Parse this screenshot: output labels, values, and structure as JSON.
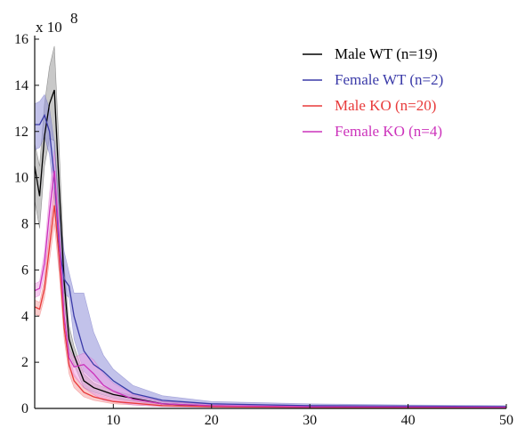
{
  "chart_data": {
    "type": "line",
    "title": "",
    "xlabel": "",
    "ylabel": "",
    "xlim": [
      2,
      50
    ],
    "ylim": [
      0,
      16
    ],
    "x_ticks": [
      "10",
      "20",
      "30",
      "40",
      "50"
    ],
    "x_tick_values": [
      10,
      20,
      30,
      40,
      50
    ],
    "y_ticks": [
      "0",
      "2",
      "4",
      "6",
      "8",
      "10",
      "12",
      "14",
      "16"
    ],
    "y_tick_values": [
      0,
      2,
      4,
      6,
      8,
      10,
      12,
      14,
      16
    ],
    "y_multiplier_base": "x 10",
    "y_multiplier_exp": "8",
    "grid": false,
    "legend_position": "top-right",
    "series": [
      {
        "name": "Male WT  (n=19)",
        "color": "#000000",
        "band_color": "#9a9a9a",
        "x": [
          2,
          2.5,
          3,
          3.5,
          4,
          4.5,
          5,
          5.5,
          6,
          7,
          8,
          10,
          15,
          20,
          30,
          40,
          50
        ],
        "mean": [
          10.5,
          9.2,
          11.8,
          13.2,
          13.8,
          9.5,
          5.5,
          3.0,
          2.3,
          1.2,
          0.9,
          0.6,
          0.2,
          0.1,
          0.06,
          0.05,
          0.04
        ],
        "upper": [
          11.5,
          10.5,
          13.2,
          14.8,
          15.7,
          11.2,
          6.2,
          3.6,
          2.7,
          1.5,
          1.1,
          0.75,
          0.3,
          0.15,
          0.08,
          0.06,
          0.05
        ],
        "lower": [
          9.0,
          7.8,
          10.5,
          11.7,
          11.6,
          8.2,
          4.8,
          2.4,
          1.9,
          0.9,
          0.7,
          0.45,
          0.12,
          0.06,
          0.04,
          0.03,
          0.03
        ]
      },
      {
        "name": "Female WT  (n=2)",
        "color": "#3a3aa8",
        "band_color": "#8f8fd8",
        "x": [
          2,
          2.5,
          3,
          3.5,
          4,
          4.5,
          5,
          5.5,
          6,
          7,
          8,
          9,
          10,
          12,
          15,
          20,
          30,
          40,
          50
        ],
        "mean": [
          12.3,
          12.3,
          12.7,
          12.0,
          10.0,
          7.0,
          5.6,
          5.3,
          4.0,
          2.5,
          1.9,
          1.6,
          1.2,
          0.65,
          0.35,
          0.2,
          0.12,
          0.1,
          0.08
        ],
        "upper": [
          13.2,
          13.3,
          13.6,
          13.0,
          11.5,
          8.5,
          6.8,
          5.9,
          5.0,
          5.0,
          3.3,
          2.3,
          1.7,
          1.0,
          0.55,
          0.3,
          0.2,
          0.15,
          0.12
        ],
        "lower": [
          11.2,
          11.3,
          11.8,
          11.0,
          9.0,
          6.0,
          5.0,
          4.8,
          3.0,
          1.6,
          1.2,
          1.0,
          0.8,
          0.4,
          0.2,
          0.12,
          0.08,
          0.06,
          0.05
        ]
      },
      {
        "name": "Male KO  (n=20)",
        "color": "#e83a3a",
        "band_color": "#f5a0a0",
        "x": [
          2,
          2.5,
          3,
          3.5,
          4,
          4.5,
          5,
          5.5,
          6,
          7,
          8,
          10,
          15,
          20,
          30,
          40,
          50
        ],
        "mean": [
          4.4,
          4.3,
          5.2,
          7.0,
          8.8,
          6.5,
          3.5,
          1.9,
          1.2,
          0.7,
          0.5,
          0.3,
          0.12,
          0.08,
          0.05,
          0.04,
          0.03
        ],
        "upper": [
          4.7,
          4.6,
          5.6,
          7.6,
          9.6,
          7.2,
          4.1,
          2.3,
          1.5,
          0.9,
          0.65,
          0.4,
          0.18,
          0.11,
          0.07,
          0.05,
          0.04
        ],
        "lower": [
          4.1,
          4.0,
          4.8,
          6.4,
          8.0,
          5.8,
          3.0,
          1.5,
          0.9,
          0.5,
          0.35,
          0.2,
          0.08,
          0.05,
          0.03,
          0.02,
          0.02
        ]
      },
      {
        "name": "Female KO  (n=4)",
        "color": "#cc33bb",
        "band_color": "#f0a0e4",
        "x": [
          2,
          2.5,
          3,
          3.5,
          4,
          4.5,
          5,
          5.5,
          6,
          7,
          8,
          9,
          10,
          12,
          15,
          20,
          30,
          40,
          50
        ],
        "mean": [
          5.1,
          5.2,
          6.3,
          8.5,
          10.3,
          7.3,
          4.0,
          2.2,
          1.8,
          1.9,
          1.5,
          1.0,
          0.75,
          0.4,
          0.2,
          0.12,
          0.07,
          0.06,
          0.05
        ],
        "upper": [
          5.4,
          5.5,
          6.8,
          9.3,
          11.2,
          8.0,
          4.6,
          2.6,
          2.2,
          2.4,
          2.1,
          1.5,
          1.1,
          0.6,
          0.3,
          0.18,
          0.1,
          0.08,
          0.07
        ],
        "lower": [
          4.8,
          4.9,
          5.8,
          7.7,
          9.4,
          6.6,
          3.4,
          1.8,
          1.4,
          0.9,
          0.6,
          0.35,
          0.3,
          0.15,
          0.08,
          0.05,
          0.03,
          0.03,
          0.02
        ]
      }
    ]
  }
}
